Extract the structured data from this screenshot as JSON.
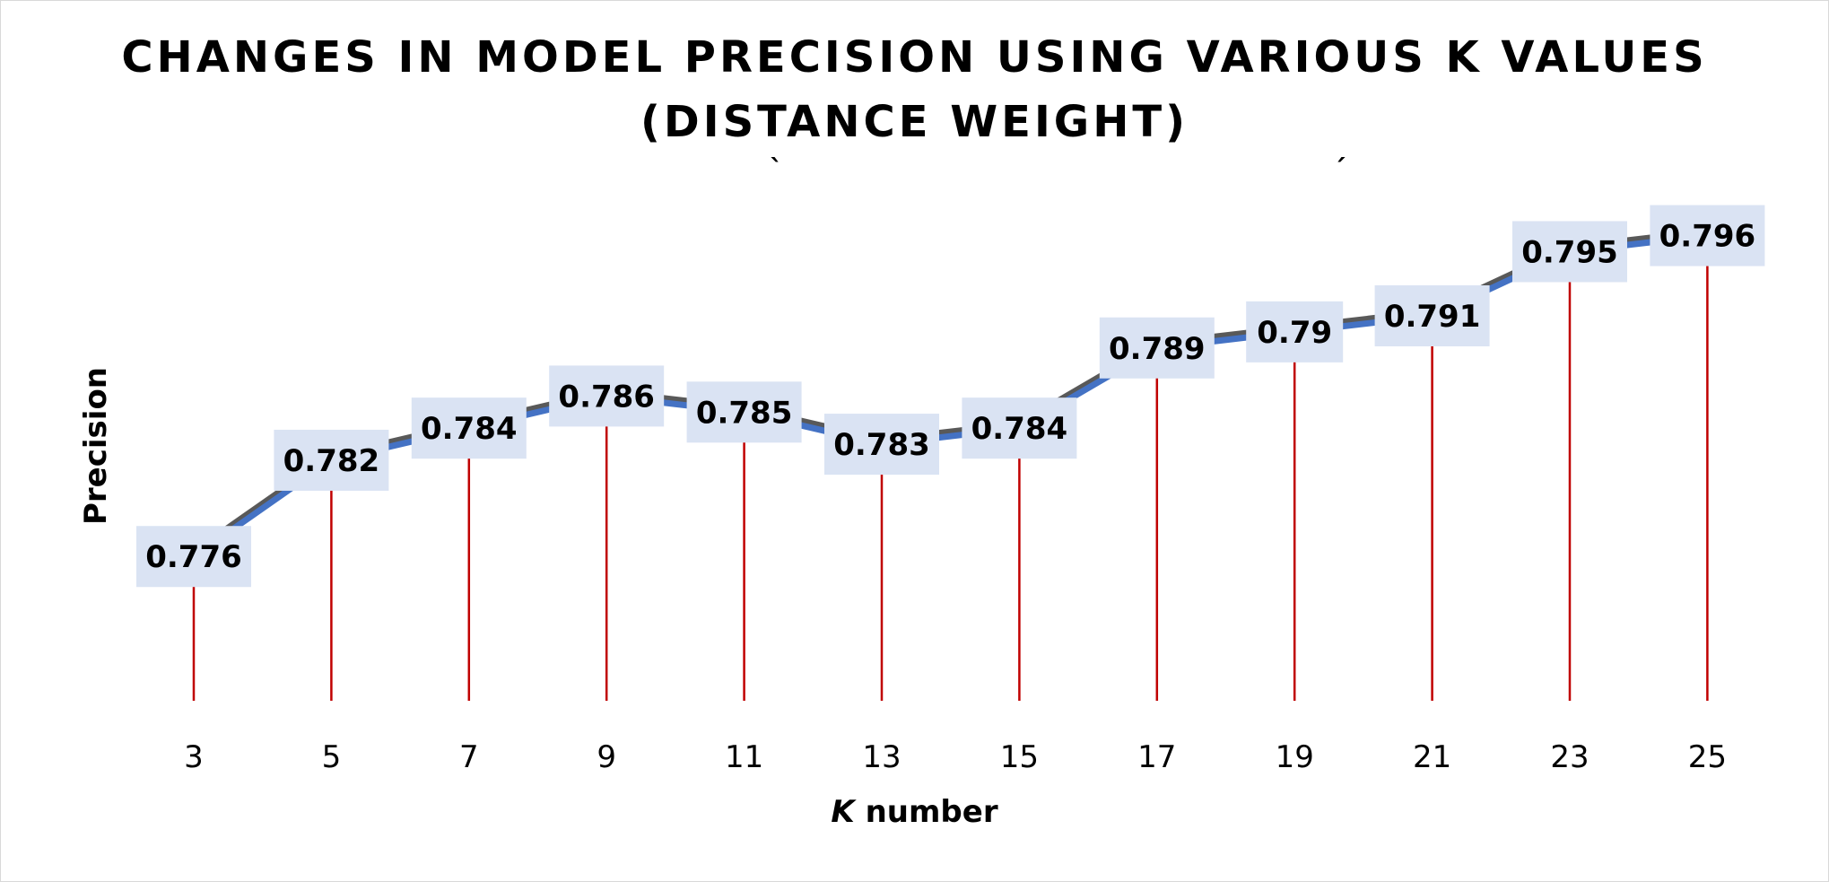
{
  "chart_data": {
    "type": "line",
    "title_lines": [
      "CHANGES IN MODEL PRECISION USING VARIOUS K VALUES",
      "(DISTANCE WEIGHT)"
    ],
    "title_marks": [
      "`",
      "´"
    ],
    "xlabel_italic": "K",
    "xlabel_rest": " number",
    "ylabel": "Precision",
    "categories": [
      "3",
      "5",
      "7",
      "9",
      "11",
      "13",
      "15",
      "17",
      "19",
      "21",
      "23",
      "25"
    ],
    "values": [
      0.776,
      0.782,
      0.784,
      0.786,
      0.785,
      0.783,
      0.784,
      0.789,
      0.79,
      0.791,
      0.795,
      0.796
    ],
    "data_labels": [
      "0.776",
      "0.782",
      "0.784",
      "0.786",
      "0.785",
      "0.783",
      "0.784",
      "0.789",
      "0.79",
      "0.791",
      "0.795",
      "0.796"
    ],
    "ylim": [
      0.7655,
      0.7995
    ],
    "grid": false,
    "legend": "none",
    "drop_lines": true,
    "colors": {
      "line": "#4472c4",
      "line_shadow": "#595959",
      "drop_line": "#c00000",
      "label_bg": "#dae3f3"
    }
  }
}
